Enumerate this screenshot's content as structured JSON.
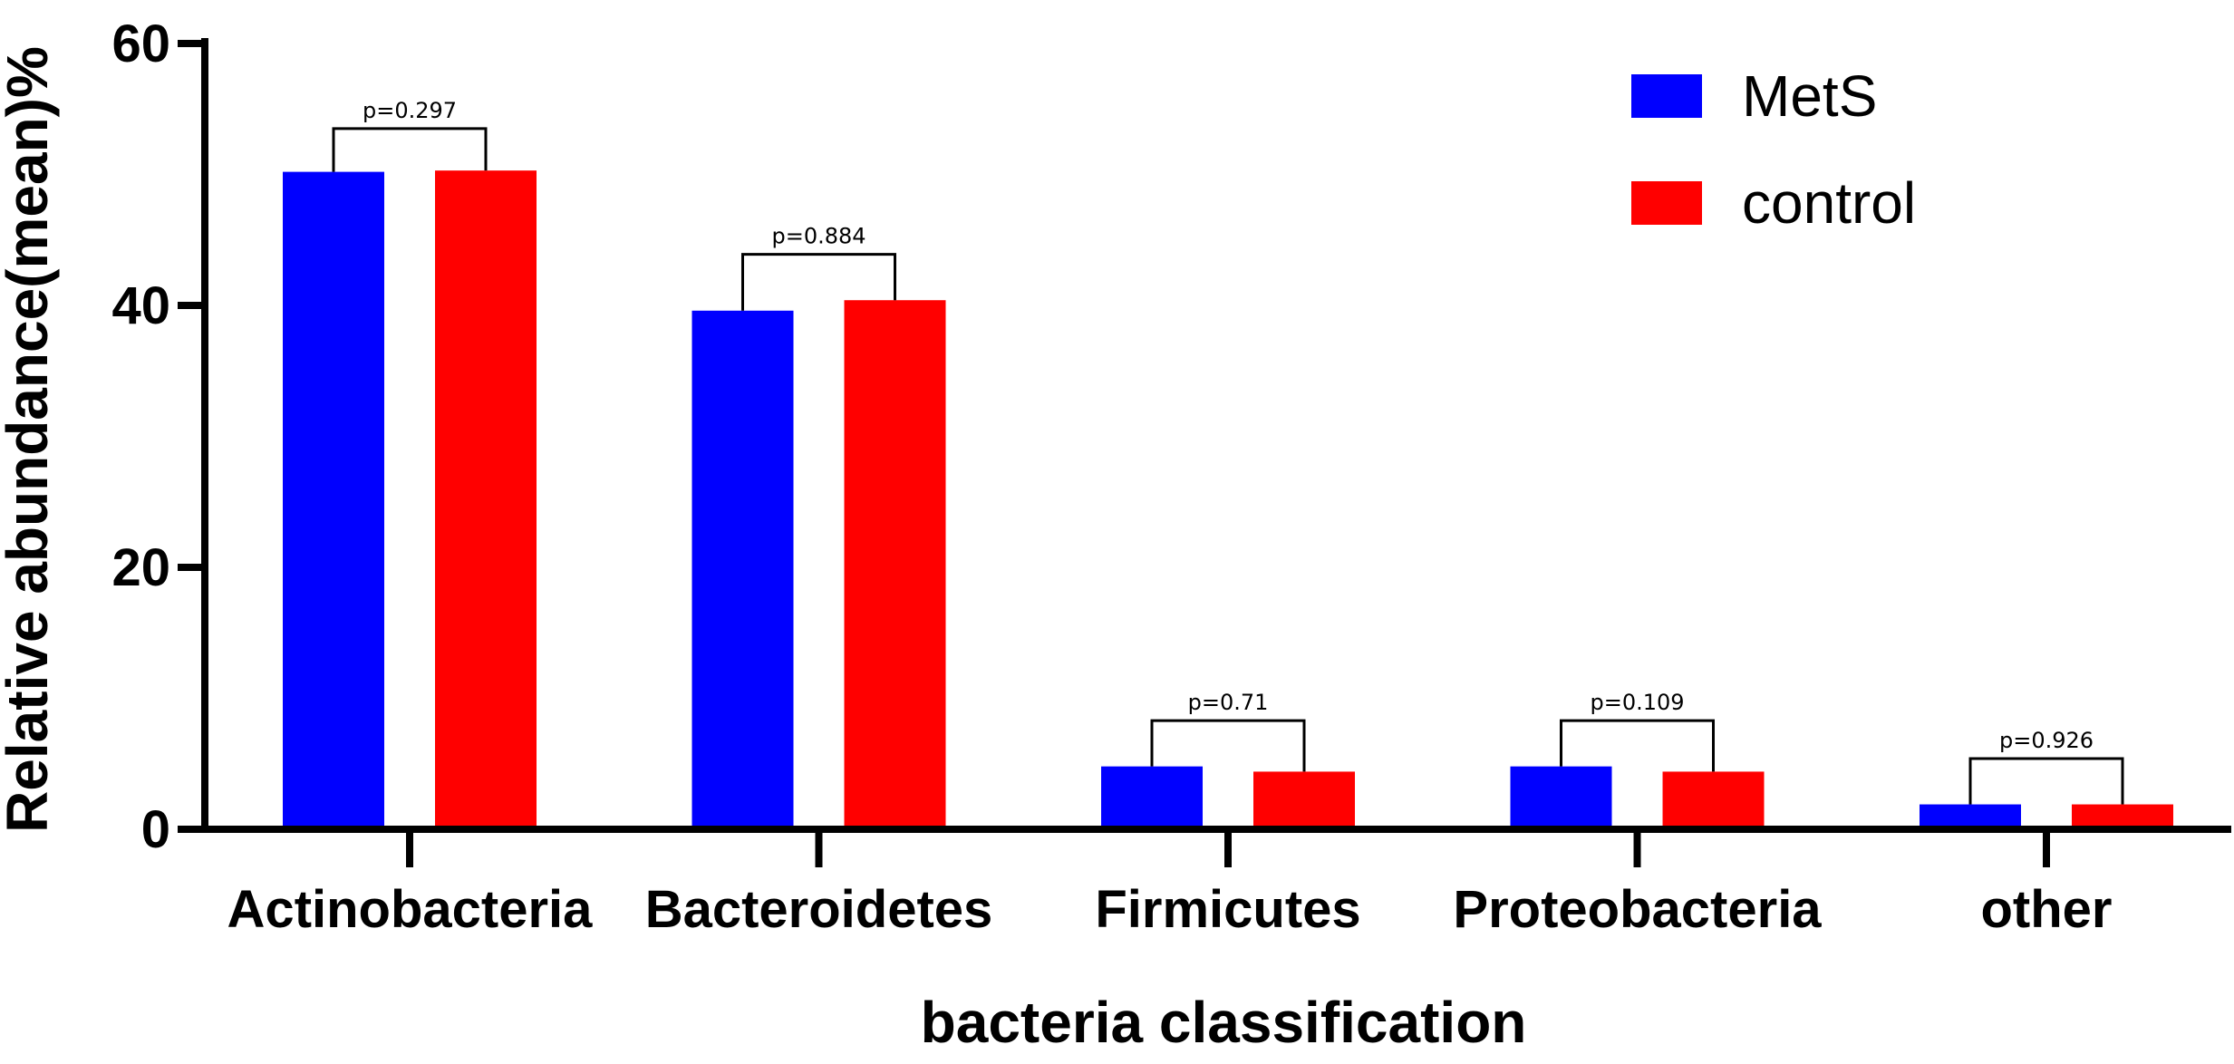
{
  "chart_data": {
    "type": "bar",
    "xlabel": "bacteria classification",
    "ylabel": "Relative abundance(mean)%",
    "ylim": [
      0,
      60
    ],
    "yticks": [
      0,
      20,
      40,
      60
    ],
    "grid": false,
    "legend_position": "top-right",
    "categories": [
      "Actinobacteria",
      "Bacteroidetes",
      "Firmicutes",
      "Proteobacteria",
      "other"
    ],
    "series": [
      {
        "name": "MetS",
        "color": "#0000ff",
        "values": [
          50.2,
          39.6,
          4.8,
          4.8,
          1.9
        ]
      },
      {
        "name": "control",
        "color": "#ff0000",
        "values": [
          50.3,
          40.4,
          4.4,
          4.4,
          1.9
        ]
      }
    ],
    "annotations": [
      {
        "category": "Actinobacteria",
        "text": "p=0.297",
        "bracket_top": 53.5
      },
      {
        "category": "Bacteroidetes",
        "text": "p=0.884",
        "bracket_top": 43.9
      },
      {
        "category": "Firmicutes",
        "text": "p=0.71",
        "bracket_top": 8.3
      },
      {
        "category": "Proteobacteria",
        "text": "p=0.109",
        "bracket_top": 8.3
      },
      {
        "category": "other",
        "text": "p=0.926",
        "bracket_top": 5.4
      }
    ]
  }
}
